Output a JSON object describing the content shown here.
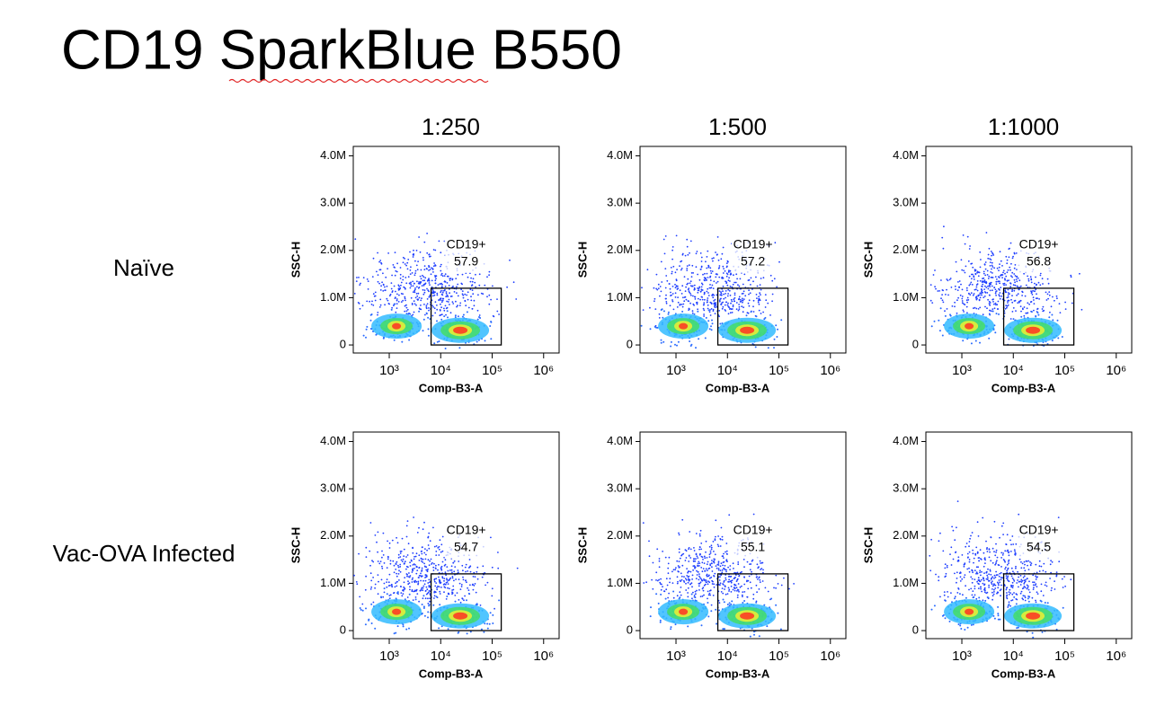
{
  "title": "CD19 SparkBlue B550",
  "columns": [
    "1:250",
    "1:500",
    "1:1000"
  ],
  "rows": [
    "Naïve",
    "Vac-OVA Infected"
  ],
  "chart_data": [
    {
      "type": "density",
      "xlabel": "Comp-B3-A",
      "ylabel": "SSC-H",
      "xscale": "log",
      "xlim": [
        200,
        2000000
      ],
      "ylim": [
        -170000,
        4200000
      ],
      "xticks": [
        {
          "value": 1000,
          "label": "10³"
        },
        {
          "value": 10000,
          "label": "10⁴"
        },
        {
          "value": 100000,
          "label": "10⁵"
        },
        {
          "value": 1000000,
          "label": "10⁶"
        }
      ],
      "yticks": [
        0,
        {
          "value": 1000000,
          "label": "1.0M"
        },
        {
          "value": 2000000,
          "label": "2.0M"
        },
        {
          "value": 3000000,
          "label": "3.0M"
        },
        {
          "value": 4000000,
          "label": "4.0M"
        }
      ],
      "gate": {
        "name": "CD19+",
        "value": 57.9,
        "x": [
          6500,
          150000
        ],
        "y": [
          0,
          1200000
        ]
      }
    },
    {
      "type": "density",
      "xlabel": "Comp-B3-A",
      "ylabel": "SSC-H",
      "xscale": "log",
      "xlim": [
        200,
        2000000
      ],
      "ylim": [
        -170000,
        4200000
      ],
      "xticks": [
        {
          "value": 1000,
          "label": "10³"
        },
        {
          "value": 10000,
          "label": "10⁴"
        },
        {
          "value": 100000,
          "label": "10⁵"
        },
        {
          "value": 1000000,
          "label": "10⁶"
        }
      ],
      "yticks": [
        0,
        {
          "value": 1000000,
          "label": "1.0M"
        },
        {
          "value": 2000000,
          "label": "2.0M"
        },
        {
          "value": 3000000,
          "label": "3.0M"
        },
        {
          "value": 4000000,
          "label": "4.0M"
        }
      ],
      "gate": {
        "name": "CD19+",
        "value": 57.2,
        "x": [
          6500,
          150000
        ],
        "y": [
          0,
          1200000
        ]
      }
    },
    {
      "type": "density",
      "xlabel": "Comp-B3-A",
      "ylabel": "SSC-H",
      "xscale": "log",
      "xlim": [
        200,
        2000000
      ],
      "ylim": [
        -170000,
        4200000
      ],
      "xticks": [
        {
          "value": 1000,
          "label": "10³"
        },
        {
          "value": 10000,
          "label": "10⁴"
        },
        {
          "value": 100000,
          "label": "10⁵"
        },
        {
          "value": 1000000,
          "label": "10⁶"
        }
      ],
      "yticks": [
        0,
        {
          "value": 1000000,
          "label": "1.0M"
        },
        {
          "value": 2000000,
          "label": "2.0M"
        },
        {
          "value": 3000000,
          "label": "3.0M"
        },
        {
          "value": 4000000,
          "label": "4.0M"
        }
      ],
      "gate": {
        "name": "CD19+",
        "value": 56.8,
        "x": [
          6500,
          150000
        ],
        "y": [
          0,
          1200000
        ]
      }
    },
    {
      "type": "density",
      "xlabel": "Comp-B3-A",
      "ylabel": "SSC-H",
      "xscale": "log",
      "xlim": [
        200,
        2000000
      ],
      "ylim": [
        -170000,
        4200000
      ],
      "xticks": [
        {
          "value": 1000,
          "label": "10³"
        },
        {
          "value": 10000,
          "label": "10⁴"
        },
        {
          "value": 100000,
          "label": "10⁵"
        },
        {
          "value": 1000000,
          "label": "10⁶"
        }
      ],
      "yticks": [
        0,
        {
          "value": 1000000,
          "label": "1.0M"
        },
        {
          "value": 2000000,
          "label": "2.0M"
        },
        {
          "value": 3000000,
          "label": "3.0M"
        },
        {
          "value": 4000000,
          "label": "4.0M"
        }
      ],
      "gate": {
        "name": "CD19+",
        "value": 54.7,
        "x": [
          6500,
          150000
        ],
        "y": [
          0,
          1200000
        ]
      }
    },
    {
      "type": "density",
      "xlabel": "Comp-B3-A",
      "ylabel": "SSC-H",
      "xscale": "log",
      "xlim": [
        200,
        2000000
      ],
      "ylim": [
        -170000,
        4200000
      ],
      "xticks": [
        {
          "value": 1000,
          "label": "10³"
        },
        {
          "value": 10000,
          "label": "10⁴"
        },
        {
          "value": 100000,
          "label": "10⁵"
        },
        {
          "value": 1000000,
          "label": "10⁶"
        }
      ],
      "yticks": [
        0,
        {
          "value": 1000000,
          "label": "1.0M"
        },
        {
          "value": 2000000,
          "label": "2.0M"
        },
        {
          "value": 3000000,
          "label": "3.0M"
        },
        {
          "value": 4000000,
          "label": "4.0M"
        }
      ],
      "gate": {
        "name": "CD19+",
        "value": 55.1,
        "x": [
          6500,
          150000
        ],
        "y": [
          0,
          1200000
        ]
      }
    },
    {
      "type": "density",
      "xlabel": "Comp-B3-A",
      "ylabel": "SSC-H",
      "xscale": "log",
      "xlim": [
        200,
        2000000
      ],
      "ylim": [
        -170000,
        4200000
      ],
      "xticks": [
        {
          "value": 1000,
          "label": "10³"
        },
        {
          "value": 10000,
          "label": "10⁴"
        },
        {
          "value": 100000,
          "label": "10⁵"
        },
        {
          "value": 1000000,
          "label": "10⁶"
        }
      ],
      "yticks": [
        0,
        {
          "value": 1000000,
          "label": "1.0M"
        },
        {
          "value": 2000000,
          "label": "2.0M"
        },
        {
          "value": 3000000,
          "label": "3.0M"
        },
        {
          "value": 4000000,
          "label": "4.0M"
        }
      ],
      "gate": {
        "name": "CD19+",
        "value": 54.5,
        "x": [
          6500,
          150000
        ],
        "y": [
          0,
          1200000
        ]
      }
    }
  ]
}
